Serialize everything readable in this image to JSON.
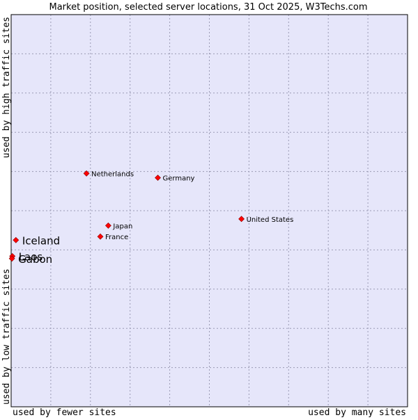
{
  "chart_data": {
    "type": "scatter",
    "title": "Market position, selected server locations, 31 Oct 2025, W3Techs.com",
    "xlabel_left": "used by fewer sites",
    "xlabel_right": "used by many sites",
    "ylabel_bottom": "used by low traffic sites",
    "ylabel_top": "used by high traffic sites",
    "xlim": [
      0,
      100
    ],
    "ylim": [
      0,
      100
    ],
    "grid": true,
    "x_grid_divisions": 10,
    "y_grid_divisions": 10,
    "colors": {
      "plot_background": "#e6e6fa",
      "grid": "#9a9ab4",
      "border": "#000000",
      "marker": "#ff0000",
      "marker_edge": "#880000"
    },
    "points": [
      {
        "label": "Netherlands",
        "x": 19.0,
        "y": 59.5,
        "emphasis": false
      },
      {
        "label": "Germany",
        "x": 37.0,
        "y": 58.4,
        "emphasis": false
      },
      {
        "label": "United States",
        "x": 58.1,
        "y": 47.9,
        "emphasis": false
      },
      {
        "label": "Japan",
        "x": 24.5,
        "y": 46.2,
        "emphasis": false
      },
      {
        "label": "France",
        "x": 22.5,
        "y": 43.4,
        "emphasis": false
      },
      {
        "label": "Iceland",
        "x": 1.2,
        "y": 42.5,
        "emphasis": true
      },
      {
        "label": "Laos",
        "x": 0.3,
        "y": 38.4,
        "emphasis": true
      },
      {
        "label": "Gabon",
        "x": 0.2,
        "y": 37.8,
        "emphasis": true
      }
    ]
  }
}
